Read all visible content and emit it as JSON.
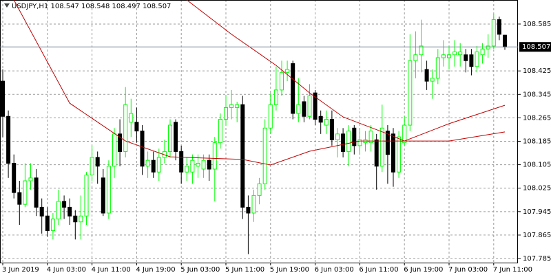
{
  "chart_data": {
    "type": "candlestick",
    "title": "USDJPY,H1  108.547 108.548 108.497 108.507",
    "categories": [
      "3 Jun 2019",
      null,
      null,
      null,
      null,
      null,
      null,
      null,
      "4 Jun 03:00",
      null,
      null,
      null,
      null,
      null,
      null,
      null,
      "4 Jun 11:00",
      null,
      null,
      null,
      null,
      null,
      null,
      null,
      "4 Jun 19:00",
      null,
      null,
      null,
      null,
      null,
      null,
      null,
      "5 Jun 03:00",
      null,
      null,
      null,
      null,
      null,
      null,
      null,
      "5 Jun 11:00",
      null,
      null,
      null,
      null,
      null,
      null,
      null,
      "5 Jun 19:00",
      null,
      null,
      null,
      null,
      null,
      null,
      null,
      "6 Jun 03:00",
      null,
      null,
      null,
      null,
      null,
      null,
      null,
      "6 Jun 11:00",
      null,
      null,
      null,
      null,
      null,
      null,
      null,
      "6 Jun 19:00",
      null,
      null,
      null,
      null,
      null,
      null,
      null,
      "7 Jun 03:00",
      null,
      null,
      null,
      null,
      null,
      null,
      null,
      "7 Jun 11:00",
      null,
      null
    ],
    "open": [
      108.39,
      108.27,
      108.11,
      108.01,
      107.97,
      108.05,
      108.06,
      107.96,
      107.93,
      107.88,
      107.92,
      107.98,
      107.96,
      107.93,
      107.91,
      107.93,
      108.07,
      108.13,
      108.06,
      107.94,
      108.1,
      108.21,
      108.15,
      108.25,
      108.25,
      108.22,
      108.1,
      108.12,
      108.08,
      108.13,
      108.15,
      108.25,
      108.15,
      108.08,
      108.08,
      108.1,
      108.09,
      108.12,
      108.09,
      108.18,
      108.26,
      108.3,
      108.3,
      108.31,
      107.96,
      107.94,
      108.0,
      108.04,
      108.23,
      108.31,
      108.36,
      108.42,
      108.45,
      108.28,
      108.32,
      108.27,
      108.35,
      108.27,
      108.24,
      108.26,
      108.19,
      108.21,
      108.15,
      108.23,
      108.17,
      108.18,
      108.18,
      108.19,
      108.1,
      108.22,
      108.21,
      108.08,
      108.18,
      108.24,
      108.46,
      108.48,
      108.43,
      108.39,
      108.4,
      108.47,
      108.47,
      108.48,
      108.48,
      108.48,
      108.48,
      108.44,
      108.48,
      108.5,
      108.51,
      108.6,
      108.547
    ],
    "close": [
      108.27,
      108.11,
      108.01,
      107.97,
      108.05,
      108.06,
      107.96,
      107.93,
      107.88,
      107.92,
      107.98,
      107.96,
      107.93,
      107.91,
      107.93,
      108.07,
      108.13,
      108.1,
      107.94,
      108.1,
      108.21,
      108.15,
      108.31,
      108.28,
      108.22,
      108.1,
      108.12,
      108.08,
      108.13,
      108.15,
      108.24,
      108.15,
      108.08,
      108.1,
      108.12,
      108.11,
      108.12,
      108.09,
      108.18,
      108.26,
      108.3,
      108.31,
      108.31,
      107.96,
      107.94,
      108.0,
      108.04,
      108.23,
      108.31,
      108.36,
      108.42,
      108.43,
      108.28,
      108.31,
      108.27,
      108.34,
      108.26,
      108.25,
      108.26,
      108.19,
      108.21,
      108.15,
      108.22,
      108.17,
      108.19,
      108.19,
      108.22,
      108.1,
      108.23,
      108.14,
      108.08,
      108.2,
      108.24,
      108.46,
      108.48,
      108.51,
      108.39,
      108.4,
      108.47,
      108.48,
      108.48,
      108.49,
      108.49,
      108.46,
      108.44,
      108.49,
      108.5,
      108.51,
      108.6,
      108.55,
      108.507
    ],
    "high": [
      108.43,
      108.29,
      108.14,
      108.05,
      108.11,
      108.11,
      108.09,
      107.99,
      107.96,
      107.94,
      108.02,
      108.0,
      107.99,
      107.95,
      108.0,
      108.08,
      108.17,
      108.15,
      108.09,
      108.12,
      108.23,
      108.26,
      108.37,
      108.33,
      108.3,
      108.24,
      108.15,
      108.15,
      108.16,
      108.19,
      108.26,
      108.26,
      108.17,
      108.13,
      108.14,
      108.14,
      108.14,
      108.14,
      108.2,
      108.28,
      108.34,
      108.36,
      108.32,
      108.34,
      108.0,
      108.02,
      108.06,
      108.26,
      108.35,
      108.44,
      108.46,
      108.46,
      108.46,
      108.4,
      108.34,
      108.38,
      108.36,
      108.29,
      108.29,
      108.29,
      108.23,
      108.23,
      108.24,
      108.24,
      108.23,
      108.22,
      108.24,
      108.21,
      108.31,
      108.24,
      108.23,
      108.22,
      108.27,
      108.55,
      108.56,
      108.6,
      108.46,
      108.43,
      108.5,
      108.53,
      108.51,
      108.53,
      108.52,
      108.5,
      108.5,
      108.51,
      108.52,
      108.55,
      108.62,
      108.61,
      108.548
    ],
    "low": [
      108.2,
      108.06,
      107.99,
      107.9,
      107.96,
      108.02,
      107.93,
      107.87,
      107.86,
      107.85,
      107.9,
      107.92,
      107.9,
      107.85,
      107.85,
      107.9,
      108.05,
      108.04,
      107.93,
      107.92,
      108.06,
      108.1,
      108.13,
      108.2,
      108.18,
      108.07,
      108.06,
      108.06,
      108.05,
      108.11,
      108.13,
      108.12,
      108.04,
      108.05,
      108.04,
      108.06,
      108.06,
      108.05,
      107.98,
      108.16,
      108.24,
      108.26,
      108.25,
      107.92,
      107.8,
      107.91,
      107.97,
      108.02,
      108.21,
      108.29,
      108.34,
      108.39,
      108.26,
      108.25,
      108.25,
      108.26,
      108.24,
      108.21,
      108.21,
      108.17,
      108.13,
      108.13,
      108.1,
      108.14,
      108.14,
      108.15,
      108.15,
      108.02,
      108.08,
      108.04,
      108.03,
      108.06,
      108.17,
      108.22,
      108.4,
      108.42,
      108.36,
      108.33,
      108.38,
      108.44,
      108.43,
      108.44,
      108.44,
      108.42,
      108.41,
      108.42,
      108.45,
      108.47,
      108.5,
      108.53,
      108.497
    ],
    "up_color": "#00ff00",
    "down_color": "#000000",
    "lines": [
      {
        "color": "#c00000",
        "x": [
          2,
          12,
          22,
          30,
          43,
          48,
          55,
          64,
          72,
          80,
          90
        ],
        "values": [
          108.667,
          108.315,
          108.186,
          108.132,
          108.123,
          108.104,
          108.151,
          108.186,
          108.186,
          108.186,
          108.217
        ]
      },
      {
        "color": "#c00000",
        "x": [
          33,
          41,
          49,
          55,
          61,
          69,
          72,
          80,
          90
        ],
        "values": [
          108.667,
          108.55,
          108.444,
          108.35,
          108.268,
          108.21,
          108.186,
          108.245,
          108.308
        ]
      }
    ],
    "last_price": 108.507,
    "ylim": [
      107.771,
      108.667
    ],
    "yticks": [
      107.785,
      107.865,
      107.945,
      108.025,
      108.105,
      108.185,
      108.265,
      108.345,
      108.425,
      108.585
    ],
    "grid": true
  }
}
